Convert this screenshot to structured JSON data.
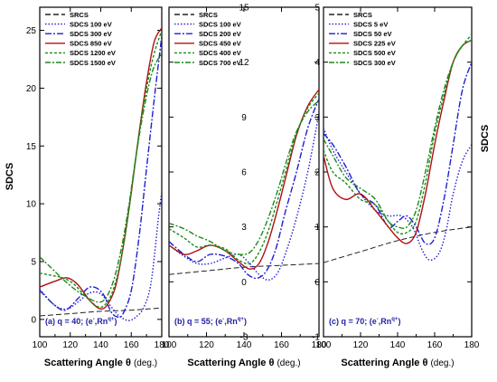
{
  "figure": {
    "ylabel_left": "SDCS",
    "ylabel_right": "SDCS",
    "xlabel_main": "Scattering Angle θ",
    "xlabel_unit": "(deg.)"
  },
  "styles": {
    "SRCS": {
      "color": "#222222",
      "dash": "6,3"
    },
    "s1": {
      "color": "#1f1fd0",
      "dash": "1.5,2"
    },
    "s2": {
      "color": "#1f1fd0",
      "dash": "7,2,2,2"
    },
    "s3": {
      "color": "#b01010",
      "dash": ""
    },
    "s4": {
      "color": "#1a8a1a",
      "dash": "3,2"
    },
    "s5": {
      "color": "#1a8a1a",
      "dash": "6,2,2,2"
    }
  },
  "chart_data": [
    {
      "type": "line",
      "panel_label_main": "(a) q = 40; (e",
      "panel_label_sup1": "-",
      "panel_label_mid": ",Rn",
      "panel_label_sup2": "q+",
      "panel_label_end": ")",
      "xlim": [
        100,
        180
      ],
      "ylim": [
        -1.5,
        27
      ],
      "xticks": [
        100,
        120,
        140,
        160,
        180
      ],
      "yticks": [
        0,
        5,
        10,
        15,
        20,
        25
      ],
      "legend_labels": [
        "SRCS",
        "SDCS 100 eV",
        "SDCS 300 eV",
        "SDCS 850 eV",
        "SDCS 1200 eV",
        "SDCS 1500 eV"
      ],
      "series": [
        {
          "style": "SRCS",
          "x": [
            100,
            120,
            140,
            160,
            180
          ],
          "y": [
            0.3,
            0.5,
            0.7,
            0.8,
            1.0
          ]
        },
        {
          "style": "s1",
          "x": [
            100,
            110,
            118,
            125,
            133,
            140,
            148,
            152,
            158,
            163,
            168,
            173,
            178,
            180
          ],
          "y": [
            2.6,
            1.2,
            0.9,
            1.5,
            2.3,
            2.2,
            0.9,
            0.3,
            -0.1,
            0.2,
            1.0,
            3.2,
            9.0,
            11.0
          ]
        },
        {
          "style": "s2",
          "x": [
            100,
            110,
            117,
            125,
            133,
            141,
            147,
            152,
            155,
            160,
            165,
            170,
            175,
            180
          ],
          "y": [
            2.5,
            1.2,
            0.8,
            1.8,
            2.8,
            2.3,
            0.6,
            0.2,
            0.6,
            2.5,
            7.0,
            13.0,
            19.0,
            24.5
          ]
        },
        {
          "style": "s3",
          "x": [
            100,
            110,
            118,
            125,
            133,
            140,
            145,
            150,
            155,
            160,
            165,
            170,
            175,
            180
          ],
          "y": [
            2.8,
            3.3,
            3.6,
            3.0,
            1.6,
            0.9,
            1.4,
            3.0,
            6.5,
            11.0,
            16.0,
            20.5,
            24.0,
            25.2
          ]
        },
        {
          "style": "s4",
          "x": [
            100,
            108,
            115,
            122,
            130,
            138,
            143,
            148,
            153,
            158,
            163,
            168,
            174,
            180
          ],
          "y": [
            4.0,
            3.8,
            3.6,
            3.1,
            2.0,
            1.1,
            1.3,
            2.5,
            5.0,
            9.0,
            14.0,
            18.5,
            22.5,
            25.0
          ]
        },
        {
          "style": "s5",
          "x": [
            100,
            108,
            115,
            123,
            130,
            138,
            143,
            148,
            153,
            158,
            163,
            168,
            174,
            180
          ],
          "y": [
            5.4,
            4.4,
            3.5,
            2.6,
            2.0,
            1.5,
            1.8,
            3.2,
            5.8,
            9.5,
            14.0,
            18.0,
            21.5,
            23.0
          ]
        }
      ]
    },
    {
      "type": "line",
      "panel_label_main": "(b) q = 55; (e",
      "panel_label_sup1": "-",
      "panel_label_mid": ",Rn",
      "panel_label_sup2": "q+",
      "panel_label_end": ")",
      "xlim": [
        100,
        180
      ],
      "ylim": [
        -3,
        15
      ],
      "xticks": [
        100,
        120,
        140,
        160,
        180
      ],
      "yticks": [
        -3,
        0,
        3,
        6,
        9,
        12,
        15
      ],
      "legend_labels": [
        "SRCS",
        "SDCS 100 eV",
        "SDCS 200 eV",
        "SDCS 450 eV",
        "SDCS 400 eV",
        "SDCS 700 eV"
      ],
      "series": [
        {
          "style": "SRCS",
          "x": [
            100,
            120,
            140,
            160,
            180
          ],
          "y": [
            0.4,
            0.6,
            0.8,
            0.9,
            1.0
          ]
        },
        {
          "style": "s1",
          "x": [
            100,
            108,
            115,
            122,
            130,
            137,
            143,
            148,
            153,
            158,
            163,
            168,
            174,
            180
          ],
          "y": [
            2.0,
            1.4,
            1.0,
            1.0,
            1.3,
            1.5,
            1.0,
            0.4,
            0.1,
            0.5,
            1.8,
            3.5,
            6.0,
            9.2
          ]
        },
        {
          "style": "s2",
          "x": [
            100,
            108,
            115,
            122,
            130,
            137,
            142,
            147,
            152,
            157,
            162,
            168,
            174,
            180
          ],
          "y": [
            2.2,
            1.5,
            1.1,
            1.5,
            1.4,
            1.0,
            0.4,
            0.2,
            0.6,
            1.8,
            3.8,
            6.0,
            8.4,
            10.0
          ]
        },
        {
          "style": "s3",
          "x": [
            100,
            108,
            115,
            122,
            130,
            137,
            143,
            148,
            153,
            158,
            163,
            168,
            174,
            180
          ],
          "y": [
            2.0,
            1.5,
            1.7,
            2.0,
            1.7,
            1.1,
            0.7,
            1.0,
            2.2,
            4.0,
            6.0,
            8.0,
            9.6,
            10.5
          ]
        },
        {
          "style": "s4",
          "x": [
            100,
            108,
            115,
            122,
            130,
            137,
            143,
            148,
            153,
            158,
            163,
            168,
            174,
            180
          ],
          "y": [
            2.9,
            2.4,
            1.9,
            2.0,
            1.8,
            1.2,
            1.0,
            1.6,
            2.8,
            4.5,
            6.3,
            8.1,
            9.5,
            10.3
          ]
        },
        {
          "style": "s5",
          "x": [
            100,
            108,
            115,
            122,
            130,
            137,
            143,
            148,
            153,
            158,
            163,
            168,
            174,
            180
          ],
          "y": [
            3.2,
            2.9,
            2.5,
            2.2,
            1.7,
            1.5,
            1.6,
            2.3,
            3.5,
            5.0,
            6.7,
            8.2,
            9.3,
            9.9
          ]
        }
      ]
    },
    {
      "type": "line",
      "panel_label_main": "(c) q = 70; (e",
      "panel_label_sup1": "-",
      "panel_label_mid": ",Rn",
      "panel_label_sup2": "q+",
      "panel_label_end": ")",
      "xlim": [
        100,
        180
      ],
      "ylim": [
        -1,
        5
      ],
      "xticks": [
        100,
        120,
        140,
        160,
        180
      ],
      "yticks": [
        -1,
        0,
        1,
        2,
        3,
        4,
        5
      ],
      "legend_labels": [
        "SRCS",
        "SDCS 5 eV",
        "SDCS 50 eV",
        "SDCS 225 eV",
        "SDCS 500 eV",
        "SDCS 300 eV"
      ],
      "series": [
        {
          "style": "SRCS",
          "x": [
            100,
            120,
            140,
            160,
            180
          ],
          "y": [
            0.35,
            0.55,
            0.75,
            0.9,
            1.0
          ]
        },
        {
          "style": "s1",
          "x": [
            100,
            105,
            112,
            120,
            128,
            135,
            142,
            148,
            153,
            157,
            162,
            166,
            170,
            175,
            180
          ],
          "y": [
            2.8,
            2.4,
            2.0,
            1.6,
            1.3,
            1.2,
            1.2,
            1.0,
            0.6,
            0.4,
            0.5,
            0.9,
            1.6,
            2.2,
            2.5
          ]
        },
        {
          "style": "s2",
          "x": [
            100,
            105,
            112,
            120,
            128,
            135,
            140,
            145,
            150,
            155,
            160,
            165,
            170,
            175,
            180
          ],
          "y": [
            2.7,
            2.5,
            2.1,
            1.6,
            1.4,
            1.0,
            1.1,
            1.2,
            1.0,
            0.7,
            0.8,
            1.5,
            2.5,
            3.5,
            4.0
          ]
        },
        {
          "style": "s3",
          "x": [
            100,
            105,
            112,
            120,
            128,
            135,
            140,
            145,
            150,
            155,
            160,
            165,
            170,
            175,
            180
          ],
          "y": [
            2.3,
            1.7,
            1.5,
            1.6,
            1.3,
            1.0,
            0.8,
            0.7,
            0.9,
            1.6,
            2.5,
            3.3,
            4.0,
            4.3,
            4.4
          ]
        },
        {
          "style": "s4",
          "x": [
            100,
            105,
            112,
            120,
            128,
            135,
            140,
            145,
            150,
            155,
            160,
            165,
            170,
            175,
            180
          ],
          "y": [
            2.4,
            2.0,
            1.8,
            1.5,
            1.4,
            1.1,
            0.9,
            0.9,
            1.1,
            1.8,
            2.7,
            3.4,
            4.0,
            4.3,
            4.5
          ]
        },
        {
          "style": "s5",
          "x": [
            100,
            105,
            112,
            120,
            128,
            135,
            140,
            145,
            150,
            155,
            160,
            165,
            170,
            175,
            180
          ],
          "y": [
            2.6,
            2.3,
            1.9,
            1.7,
            1.5,
            1.1,
            1.0,
            1.0,
            1.3,
            2.0,
            2.8,
            3.5,
            4.0,
            4.3,
            4.4
          ]
        }
      ]
    }
  ]
}
